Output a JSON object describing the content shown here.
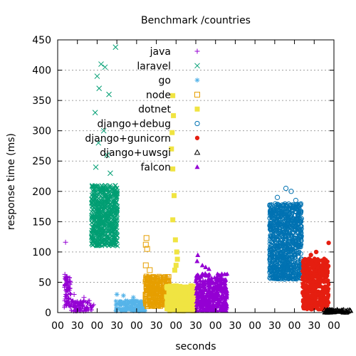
{
  "chart_data": {
    "type": "scatter",
    "title": "Benchmark /countries",
    "xlabel": "seconds",
    "ylabel": "response time (ms)",
    "xlim": [
      0,
      420
    ],
    "ylim": [
      0,
      450
    ],
    "x_ticks": [
      0,
      30,
      60,
      90,
      120,
      150,
      180,
      210,
      240,
      270,
      300,
      330,
      360,
      390,
      420
    ],
    "x_tick_labels": [
      "00",
      "30",
      "00",
      "30",
      "00",
      "30",
      "00",
      "30",
      "00",
      "30",
      "00",
      "30",
      "00",
      "30",
      "00"
    ],
    "y_ticks": [
      0,
      50,
      100,
      150,
      200,
      250,
      300,
      350,
      400,
      450
    ],
    "y_tick_labels": [
      "0",
      "50",
      "100",
      "150",
      "200",
      "250",
      "300",
      "350",
      "400",
      "450"
    ],
    "grid": "horizontal dotted",
    "legend_position": "top-left",
    "series": [
      {
        "name": "java",
        "marker": "plus",
        "color": "#9400d3",
        "x_range": [
          10,
          55
        ],
        "dense": [
          [
            10,
            20,
            5,
            60
          ],
          [
            20,
            55,
            2,
            20
          ]
        ],
        "outliers": [
          [
            12,
            116
          ],
          [
            11,
            63
          ],
          [
            13,
            58
          ],
          [
            15,
            42
          ],
          [
            25,
            30
          ],
          [
            40,
            25
          ]
        ]
      },
      {
        "name": "laravel",
        "marker": "x",
        "color": "#009e73",
        "x_range": [
          50,
          92
        ],
        "dense": [
          [
            51,
            91,
            110,
            210
          ]
        ],
        "outliers": [
          [
            88,
            438
          ],
          [
            66,
            410
          ],
          [
            72,
            405
          ],
          [
            60,
            390
          ],
          [
            63,
            370
          ],
          [
            78,
            360
          ],
          [
            57,
            330
          ],
          [
            70,
            300
          ],
          [
            62,
            280
          ],
          [
            75,
            260
          ],
          [
            58,
            240
          ],
          [
            80,
            230
          ]
        ]
      },
      {
        "name": "go",
        "marker": "asterisk",
        "color": "#56b4e9",
        "x_range": [
          88,
          133
        ],
        "dense": [
          [
            88,
            133,
            2,
            20
          ]
        ],
        "outliers": [
          [
            90,
            30
          ],
          [
            100,
            28
          ],
          [
            115,
            25
          ]
        ]
      },
      {
        "name": "node",
        "marker": "open-square",
        "color": "#e69f00",
        "x_range": [
          133,
          170
        ],
        "dense": [
          [
            133,
            170,
            10,
            60
          ]
        ],
        "outliers": [
          [
            135,
            123
          ],
          [
            134,
            112
          ],
          [
            136,
            105
          ],
          [
            134,
            78
          ],
          [
            140,
            70
          ]
        ]
      },
      {
        "name": "dotnet",
        "marker": "filled-square",
        "color": "#f0e442",
        "x_range": [
          165,
          210
        ],
        "dense": [
          [
            165,
            210,
            2,
            45
          ]
        ],
        "outliers": [
          [
            175,
            358
          ],
          [
            176,
            325
          ],
          [
            174,
            297
          ],
          [
            173,
            270
          ],
          [
            175,
            237
          ],
          [
            177,
            193
          ],
          [
            175,
            153
          ],
          [
            179,
            120
          ],
          [
            181,
            100
          ],
          [
            182,
            88
          ],
          [
            180,
            78
          ],
          [
            178,
            70
          ]
        ]
      },
      {
        "name": "django+debug",
        "marker": "open-circle",
        "color": "#0072b2",
        "x_range": [
          322,
          375
        ],
        "dense": [
          [
            322,
            371,
            55,
            180
          ]
        ],
        "outliers": [
          [
            347,
            205
          ],
          [
            355,
            200
          ],
          [
            334,
            190
          ],
          [
            362,
            185
          ],
          [
            330,
            60
          ],
          [
            345,
            55
          ]
        ]
      },
      {
        "name": "django+gunicorn",
        "marker": "filled-circle",
        "color": "#e51e10",
        "x_range": [
          370,
          415
        ],
        "dense": [
          [
            372,
            412,
            5,
            90
          ]
        ],
        "outliers": [
          [
            412,
            115
          ],
          [
            393,
            100
          ],
          [
            385,
            95
          ],
          [
            405,
            85
          ]
        ]
      },
      {
        "name": "django+uwsgi",
        "marker": "open-triangle",
        "color": "#000000",
        "x_range": [
          405,
          448
        ],
        "dense": [
          [
            405,
            448,
            0,
            5
          ]
        ],
        "outliers": []
      },
      {
        "name": "falcon",
        "marker": "filled-triangle",
        "color": "#9400d3",
        "x_range": [
          210,
          258
        ],
        "dense": [
          [
            210,
            258,
            2,
            65
          ]
        ],
        "outliers": [
          [
            213,
            95
          ],
          [
            212,
            85
          ],
          [
            220,
            78
          ],
          [
            225,
            75
          ],
          [
            230,
            72
          ]
        ]
      }
    ]
  }
}
